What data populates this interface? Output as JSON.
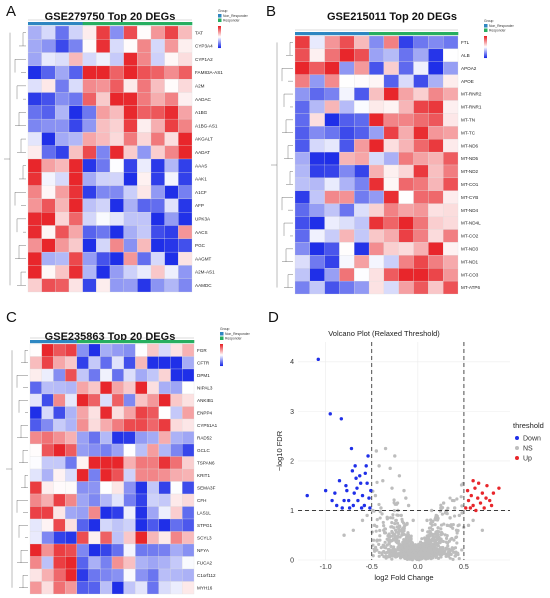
{
  "panels": [
    {
      "label": "A"
    },
    {
      "label": "B"
    },
    {
      "label": "C"
    },
    {
      "label": "D"
    }
  ],
  "chart_data": [
    {
      "type": "heatmap",
      "title": "GSE279750 Top 20 DEGs",
      "legend_title": "Group",
      "groups": [
        "Non_Responder",
        "Responder"
      ],
      "group_colors": [
        "#2e86c1",
        "#27ae60"
      ],
      "n_columns": 12,
      "n_group1": 4,
      "color_scale": {
        "low": "#1f2fe8",
        "mid": "#ffffff",
        "high": "#e8262b"
      },
      "genes": [
        "TAT",
        "CYP3A4",
        "CYP1A2",
        "FAM83A-AS1",
        "A2M",
        "AADAC",
        "A1BG",
        "A1BG-AS1",
        "AKGALT",
        "AADAT",
        "AAAS",
        "AAK1",
        "A1CF",
        "AFP",
        "UPK3A",
        "AACS",
        "PGC",
        "AAGMT",
        "A2M-AS1",
        "AAMDC"
      ],
      "up_in_group1": [
        false,
        false,
        false,
        false,
        false,
        false,
        false,
        false,
        false,
        false,
        true,
        true,
        true,
        true,
        true,
        true,
        true,
        true,
        true,
        true
      ]
    },
    {
      "type": "heatmap",
      "title": "GSE215011 Top 20 DEGs",
      "legend_title": "Group",
      "groups": [
        "Non_Responder",
        "Responder"
      ],
      "group_colors": [
        "#2e86c1",
        "#27ae60"
      ],
      "n_columns": 11,
      "n_group1": 5,
      "color_scale": {
        "low": "#1f2fe8",
        "mid": "#ffffff",
        "high": "#e8262b"
      },
      "genes": [
        "FTL",
        "ALB",
        "APOA2",
        "APOE",
        "MT-RNR2",
        "MT-RNR1",
        "MT-TN",
        "MT-TC",
        "MT-ND6",
        "MT-ND5",
        "MT-ND2",
        "MT-CO1",
        "MT-CYB",
        "MT-ND4",
        "MT-ND4L",
        "MT-CO2",
        "MT-ND3",
        "MT-ND1",
        "MT-CO3",
        "MT-ATP6"
      ],
      "up_in_group1": [
        true,
        true,
        true,
        true,
        false,
        false,
        false,
        false,
        false,
        false,
        false,
        false,
        false,
        false,
        false,
        false,
        false,
        false,
        false,
        false
      ]
    },
    {
      "type": "heatmap",
      "title": "GSE235863 Top 20 DEGs",
      "legend_title": "Group",
      "groups": [
        "Non_Responder",
        "Responder"
      ],
      "group_colors": [
        "#2e86c1",
        "#27ae60"
      ],
      "n_columns": 14,
      "n_group1": 4,
      "color_scale": {
        "low": "#1f2fe8",
        "mid": "#ffffff",
        "high": "#e8262b"
      },
      "genes": [
        "FGR",
        "CFTR",
        "DPM1",
        "NIPAL3",
        "ANKIB1",
        "ENPP4",
        "CYP51A1",
        "RAD52",
        "GCLC",
        "TSPAN6",
        "KRIT1",
        "SEMA3F",
        "CFH",
        "LAS1L",
        "STPG1",
        "SCYL3",
        "NFYA",
        "FUCA2",
        "C1orf112",
        "MYH16"
      ],
      "up_in_group1": [
        true,
        true,
        true,
        false,
        false,
        false,
        false,
        true,
        true,
        false,
        false,
        true,
        true,
        true,
        true,
        false,
        true,
        true,
        true,
        true
      ]
    },
    {
      "type": "scatter",
      "title": "Volcano Plot (Relaxed Threshold)",
      "xlabel": "log2 Fold Change",
      "ylabel": "−log10 FDR",
      "xlim": [
        -1.3,
        1.0
      ],
      "ylim": [
        0,
        4.4
      ],
      "xticks": [
        "-1.0",
        "-0.5",
        "0.0",
        "0.5"
      ],
      "yticks": [
        "0",
        "1",
        "2",
        "3",
        "4"
      ],
      "thresholds": {
        "log2fc": 0.5,
        "neg_log10_fdr": 1
      },
      "legend_title": "threshold",
      "series": [
        {
          "name": "Down",
          "color": "#1f2fe8",
          "points": [
            [
              -1.08,
              4.05
            ],
            [
              -0.95,
              2.95
            ],
            [
              -0.83,
              2.85
            ],
            [
              -0.72,
              2.25
            ],
            [
              -0.68,
              1.9
            ],
            [
              -1.2,
              1.3
            ],
            [
              -1.0,
              1.4
            ],
            [
              -0.9,
              1.35
            ],
            [
              -0.85,
              1.6
            ],
            [
              -0.78,
              1.5
            ],
            [
              -0.75,
              1.2
            ],
            [
              -0.7,
              1.1
            ],
            [
              -0.66,
              1.45
            ],
            [
              -0.63,
              1.7
            ],
            [
              -0.6,
              1.3
            ],
            [
              -0.58,
              1.1
            ],
            [
              -0.55,
              1.55
            ],
            [
              -0.53,
              1.25
            ],
            [
              -0.52,
              1.05
            ],
            [
              -0.56,
              1.9
            ],
            [
              -0.61,
              1.05
            ],
            [
              -0.65,
              1.2
            ],
            [
              -0.69,
              1.35
            ],
            [
              -0.74,
              1.05
            ],
            [
              -0.8,
              1.2
            ],
            [
              -0.88,
              1.1
            ],
            [
              -0.51,
              1.4
            ],
            [
              -0.54,
              2.1
            ],
            [
              -0.57,
              1.75
            ],
            [
              -0.62,
              1.55
            ],
            [
              -0.67,
              1.65
            ],
            [
              -0.71,
              1.8
            ],
            [
              -0.77,
              1.4
            ],
            [
              -0.82,
              1.05
            ],
            [
              -0.93,
              1.2
            ]
          ]
        },
        {
          "name": "NS",
          "color": "#bdbdbd",
          "points": [
            [
              -0.45,
              2.2
            ],
            [
              -0.35,
              2.25
            ],
            [
              -0.25,
              2.1
            ],
            [
              -0.42,
              1.9
            ],
            [
              -0.3,
              1.85
            ],
            [
              -0.2,
              1.7
            ],
            [
              -0.38,
              1.6
            ],
            [
              -0.15,
              1.4
            ],
            [
              -0.28,
              1.45
            ],
            [
              -0.46,
              1.3
            ],
            [
              -0.1,
              1.1
            ],
            [
              -0.22,
              1.15
            ],
            [
              -0.4,
              1.05
            ],
            [
              -0.05,
              0.8
            ],
            [
              -0.18,
              0.9
            ],
            [
              -0.33,
              0.85
            ],
            [
              -0.47,
              0.7
            ],
            [
              0.0,
              0.3
            ],
            [
              0.05,
              0.6
            ],
            [
              0.1,
              0.8
            ],
            [
              0.15,
              1.0
            ],
            [
              0.2,
              0.9
            ],
            [
              0.25,
              1.05
            ],
            [
              0.3,
              0.95
            ],
            [
              0.35,
              0.85
            ],
            [
              0.4,
              1.05
            ],
            [
              0.45,
              0.9
            ],
            [
              0.12,
              0.5
            ],
            [
              0.22,
              0.65
            ],
            [
              0.32,
              0.7
            ],
            [
              0.42,
              0.6
            ],
            [
              -0.12,
              0.5
            ],
            [
              -0.24,
              0.6
            ],
            [
              -0.36,
              0.55
            ],
            [
              -0.44,
              0.4
            ],
            [
              0.02,
              0.15
            ],
            [
              -0.02,
              0.1
            ],
            [
              0.08,
              0.35
            ],
            [
              -0.08,
              0.3
            ],
            [
              0.48,
              0.95
            ],
            [
              -0.49,
              1.0
            ],
            [
              -0.6,
              0.8
            ],
            [
              -0.7,
              0.6
            ],
            [
              -0.8,
              0.5
            ],
            [
              0.6,
              0.8
            ],
            [
              0.7,
              0.6
            ],
            [
              0.55,
              0.7
            ],
            [
              -0.55,
              0.9
            ],
            [
              0.28,
              1.15
            ],
            [
              -0.13,
              1.25
            ]
          ]
        },
        {
          "name": "Up",
          "color": "#e8262b",
          "points": [
            [
              0.52,
              1.05
            ],
            [
              0.55,
              1.2
            ],
            [
              0.58,
              1.3
            ],
            [
              0.6,
              1.1
            ],
            [
              0.62,
              1.45
            ],
            [
              0.65,
              1.25
            ],
            [
              0.68,
              1.15
            ],
            [
              0.7,
              1.35
            ],
            [
              0.72,
              1.05
            ],
            [
              0.75,
              1.5
            ],
            [
              0.78,
              1.2
            ],
            [
              0.82,
              1.35
            ],
            [
              0.88,
              1.45
            ],
            [
              0.54,
              1.4
            ],
            [
              0.57,
              1.05
            ],
            [
              0.63,
              1.0
            ],
            [
              0.66,
              1.55
            ],
            [
              0.74,
              1.25
            ],
            [
              0.8,
              1.1
            ],
            [
              0.6,
              1.6
            ]
          ]
        }
      ]
    }
  ]
}
